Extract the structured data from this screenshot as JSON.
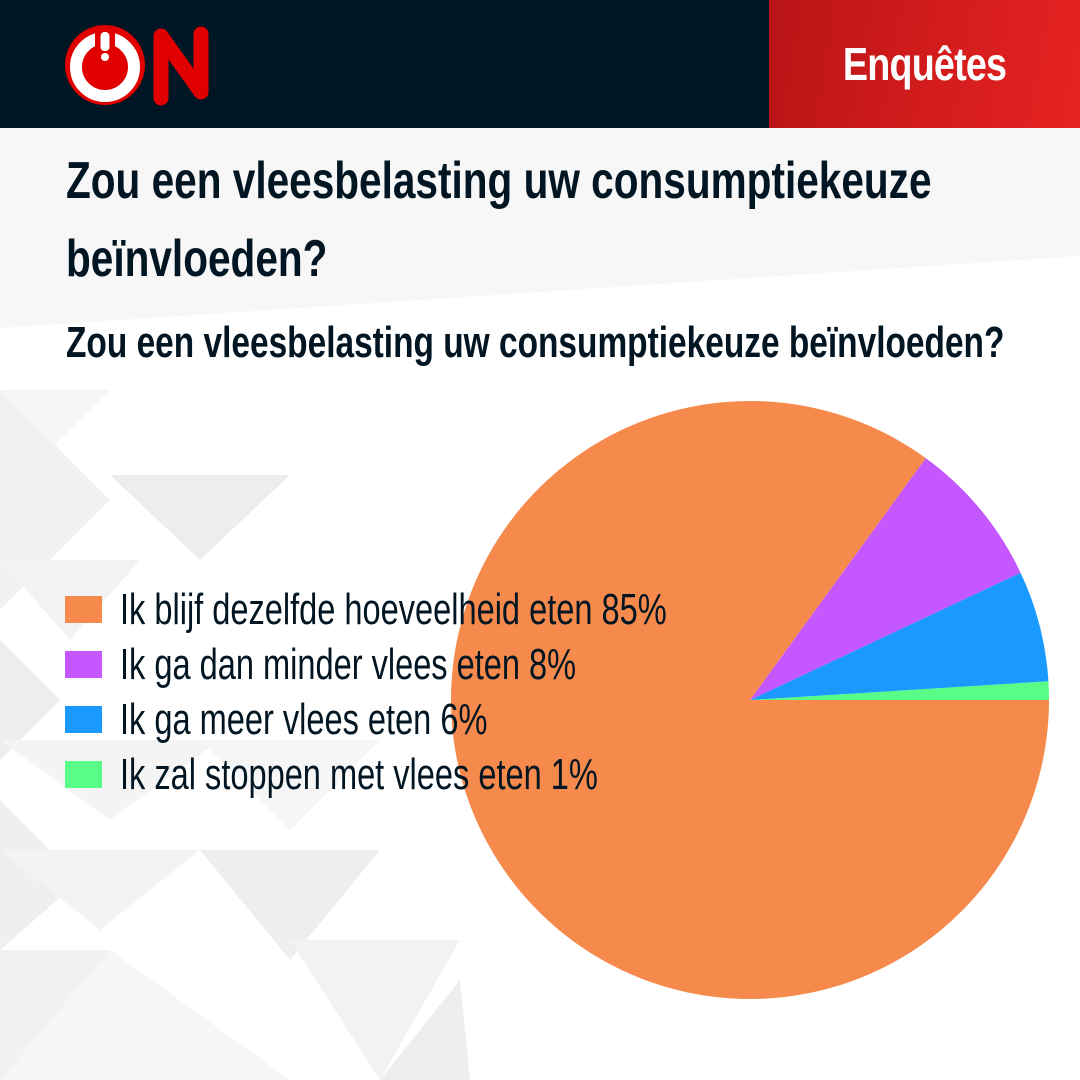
{
  "header": {
    "logo_text": "ON",
    "section_label": "Enquêtes",
    "colors": {
      "bar": "#001624",
      "badge": "#d41c1c",
      "logo_red": "#e00000"
    }
  },
  "title": {
    "line1": "Zou een vleesbelasting uw consumptiekeuze",
    "line2": "beïnvloeden?"
  },
  "subtitle": "Zou een vleesbelasting uw consumptiekeuze beïnvloeden?",
  "legend": [
    {
      "label": "Ik blijf dezelfde hoeveelheid eten 85%",
      "color": "#f58a4c"
    },
    {
      "label": "Ik ga dan minder vlees eten 8%",
      "color": "#c457fd"
    },
    {
      "label": "Ik ga meer vlees eten 6%",
      "color": "#1a99fe"
    },
    {
      "label": "Ik zal stoppen met vlees eten 1%",
      "color": "#57fd87"
    }
  ],
  "chart_data": {
    "type": "pie",
    "title": "Zou een vleesbelasting uw consumptiekeuze beïnvloeden?",
    "categories": [
      "Ik blijf dezelfde hoeveelheid eten",
      "Ik ga dan minder vlees eten",
      "Ik ga meer vlees eten",
      "Ik zal stoppen met vlees eten"
    ],
    "values": [
      85,
      8,
      6,
      1
    ],
    "unit": "%",
    "colors": [
      "#f58a4c",
      "#c457fd",
      "#1a99fe",
      "#57fd87"
    ],
    "legend_position": "left, overlapping chart",
    "start_angle": "3 o'clock, counter-clockwise order: 1%, 6%, 8%, 85%"
  }
}
